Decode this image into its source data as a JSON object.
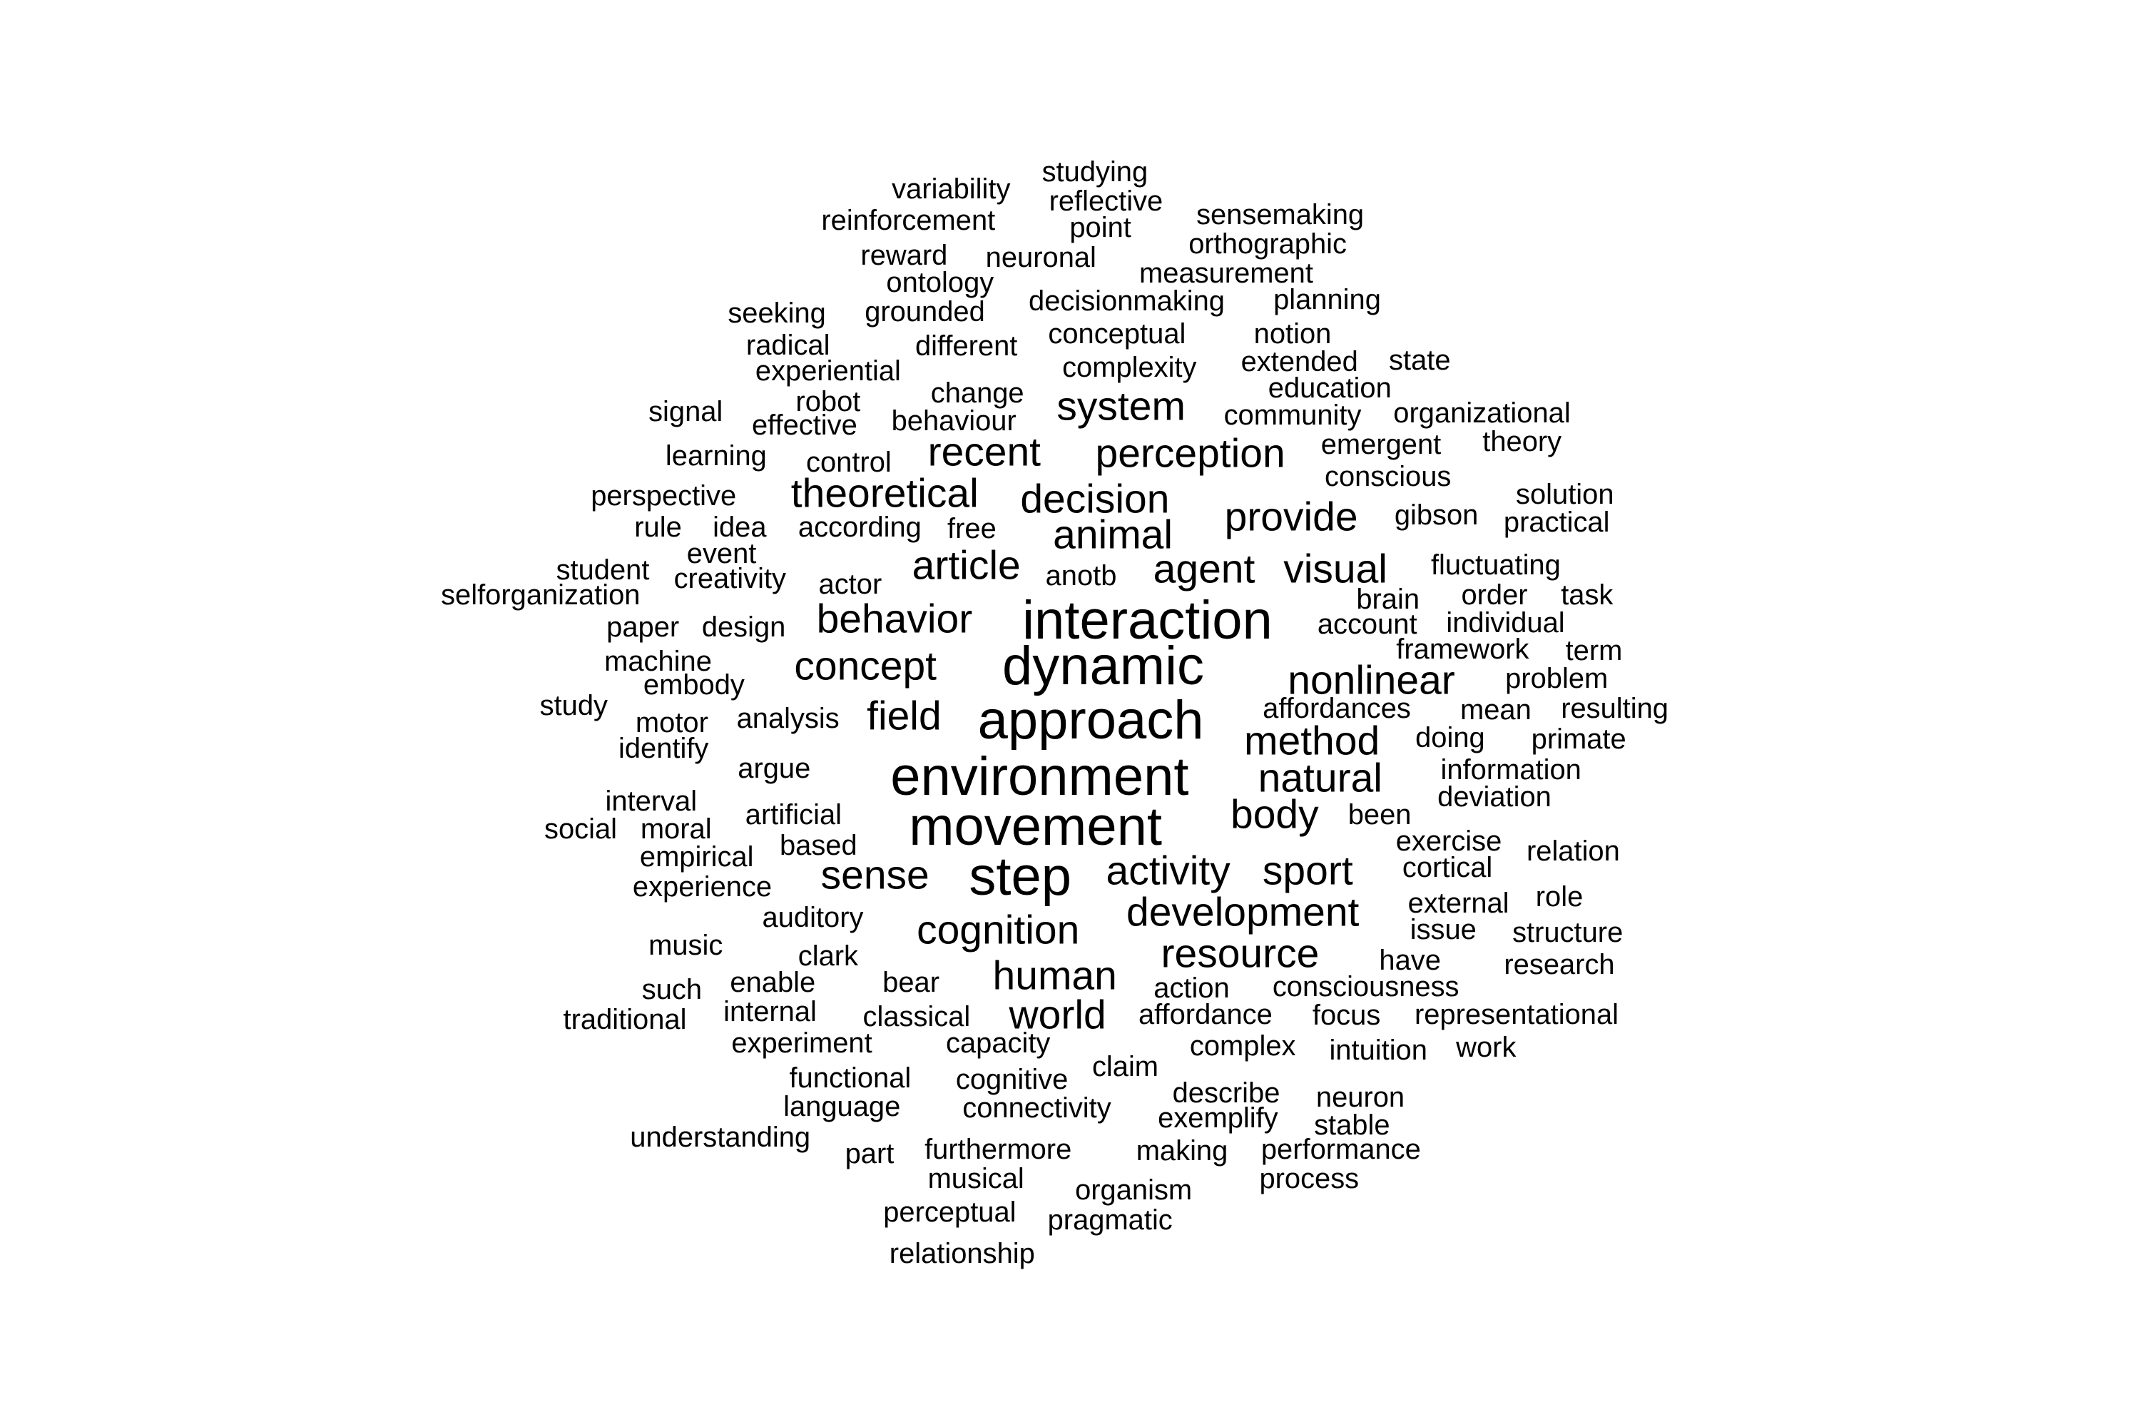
{
  "word_cloud": {
    "text_color": "#000000",
    "background_color": "#ffffff",
    "words": [
      {
        "text": "interaction"
      },
      {
        "text": "dynamic"
      },
      {
        "text": "approach"
      },
      {
        "text": "environment"
      },
      {
        "text": "movement"
      },
      {
        "text": "step"
      },
      {
        "text": "nonlinear"
      },
      {
        "text": "method"
      },
      {
        "text": "natural"
      },
      {
        "text": "body"
      },
      {
        "text": "activity"
      },
      {
        "text": "sport"
      },
      {
        "text": "development"
      },
      {
        "text": "resource"
      },
      {
        "text": "cognition"
      },
      {
        "text": "human"
      },
      {
        "text": "world"
      },
      {
        "text": "sense"
      },
      {
        "text": "field"
      },
      {
        "text": "concept"
      },
      {
        "text": "behavior"
      },
      {
        "text": "article"
      },
      {
        "text": "agent"
      },
      {
        "text": "visual"
      },
      {
        "text": "animal"
      },
      {
        "text": "provide"
      },
      {
        "text": "decision"
      },
      {
        "text": "theoretical"
      },
      {
        "text": "recent"
      },
      {
        "text": "perception"
      },
      {
        "text": "system"
      },
      {
        "text": "studying"
      },
      {
        "text": "variability"
      },
      {
        "text": "reflective"
      },
      {
        "text": "reinforcement"
      },
      {
        "text": "point"
      },
      {
        "text": "sensemaking"
      },
      {
        "text": "orthographic"
      },
      {
        "text": "reward"
      },
      {
        "text": "neuronal"
      },
      {
        "text": "measurement"
      },
      {
        "text": "ontology"
      },
      {
        "text": "decisionmaking"
      },
      {
        "text": "planning"
      },
      {
        "text": "seeking"
      },
      {
        "text": "grounded"
      },
      {
        "text": "conceptual"
      },
      {
        "text": "notion"
      },
      {
        "text": "radical"
      },
      {
        "text": "different"
      },
      {
        "text": "extended"
      },
      {
        "text": "state"
      },
      {
        "text": "experiential"
      },
      {
        "text": "complexity"
      },
      {
        "text": "education"
      },
      {
        "text": "change"
      },
      {
        "text": "robot"
      },
      {
        "text": "signal"
      },
      {
        "text": "community"
      },
      {
        "text": "organizational"
      },
      {
        "text": "effective"
      },
      {
        "text": "behaviour"
      },
      {
        "text": "emergent"
      },
      {
        "text": "theory"
      },
      {
        "text": "learning"
      },
      {
        "text": "control"
      },
      {
        "text": "conscious"
      },
      {
        "text": "perspective"
      },
      {
        "text": "solution"
      },
      {
        "text": "rule"
      },
      {
        "text": "idea"
      },
      {
        "text": "according"
      },
      {
        "text": "free"
      },
      {
        "text": "gibson"
      },
      {
        "text": "practical"
      },
      {
        "text": "event"
      },
      {
        "text": "student"
      },
      {
        "text": "creativity"
      },
      {
        "text": "actor"
      },
      {
        "text": "anotb"
      },
      {
        "text": "fluctuating"
      },
      {
        "text": "selforganization"
      },
      {
        "text": "brain"
      },
      {
        "text": "order"
      },
      {
        "text": "task"
      },
      {
        "text": "paper"
      },
      {
        "text": "design"
      },
      {
        "text": "account"
      },
      {
        "text": "individual"
      },
      {
        "text": "framework"
      },
      {
        "text": "term"
      },
      {
        "text": "machine"
      },
      {
        "text": "embody"
      },
      {
        "text": "problem"
      },
      {
        "text": "study"
      },
      {
        "text": "motor"
      },
      {
        "text": "analysis"
      },
      {
        "text": "affordances"
      },
      {
        "text": "mean"
      },
      {
        "text": "resulting"
      },
      {
        "text": "identify"
      },
      {
        "text": "doing"
      },
      {
        "text": "primate"
      },
      {
        "text": "argue"
      },
      {
        "text": "information"
      },
      {
        "text": "interval"
      },
      {
        "text": "deviation"
      },
      {
        "text": "artificial"
      },
      {
        "text": "been"
      },
      {
        "text": "social"
      },
      {
        "text": "moral"
      },
      {
        "text": "based"
      },
      {
        "text": "exercise"
      },
      {
        "text": "relation"
      },
      {
        "text": "empirical"
      },
      {
        "text": "cortical"
      },
      {
        "text": "experience"
      },
      {
        "text": "role"
      },
      {
        "text": "external"
      },
      {
        "text": "auditory"
      },
      {
        "text": "issue"
      },
      {
        "text": "structure"
      },
      {
        "text": "music"
      },
      {
        "text": "clark"
      },
      {
        "text": "have"
      },
      {
        "text": "research"
      },
      {
        "text": "such"
      },
      {
        "text": "enable"
      },
      {
        "text": "bear"
      },
      {
        "text": "action"
      },
      {
        "text": "consciousness"
      },
      {
        "text": "traditional"
      },
      {
        "text": "internal"
      },
      {
        "text": "classical"
      },
      {
        "text": "affordance"
      },
      {
        "text": "focus"
      },
      {
        "text": "representational"
      },
      {
        "text": "experiment"
      },
      {
        "text": "capacity"
      },
      {
        "text": "complex"
      },
      {
        "text": "intuition"
      },
      {
        "text": "work"
      },
      {
        "text": "claim"
      },
      {
        "text": "functional"
      },
      {
        "text": "cognitive"
      },
      {
        "text": "describe"
      },
      {
        "text": "neuron"
      },
      {
        "text": "language"
      },
      {
        "text": "connectivity"
      },
      {
        "text": "exemplify"
      },
      {
        "text": "stable"
      },
      {
        "text": "understanding"
      },
      {
        "text": "part"
      },
      {
        "text": "furthermore"
      },
      {
        "text": "making"
      },
      {
        "text": "performance"
      },
      {
        "text": "musical"
      },
      {
        "text": "process"
      },
      {
        "text": "organism"
      },
      {
        "text": "perceptual"
      },
      {
        "text": "pragmatic"
      },
      {
        "text": "relationship"
      }
    ]
  }
}
